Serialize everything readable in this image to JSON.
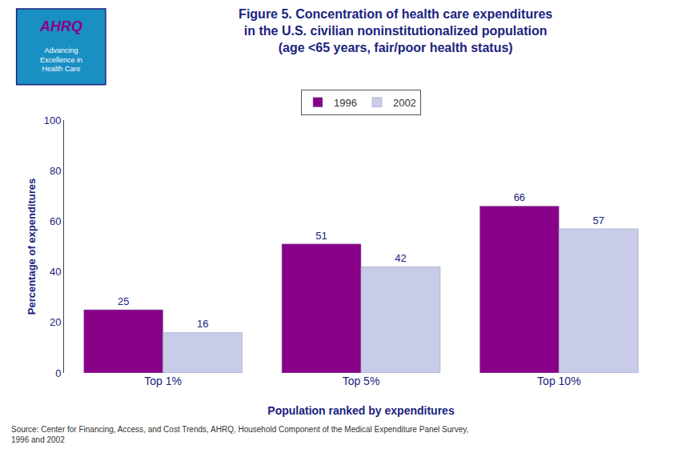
{
  "chart_data": {
    "type": "bar",
    "title": "Figure 5. Concentration of health care expenditures\nin the U.S. civilian noninstitutionalized population\n(age <65 years, fair/poor health status)",
    "categories": [
      "Top 1%",
      "Top 5%",
      "Top 10%"
    ],
    "series": [
      {
        "name": "1996",
        "color": "#880088",
        "values": [
          25,
          51,
          66
        ]
      },
      {
        "name": "2002",
        "color": "#c8cce8",
        "values": [
          16,
          42,
          57
        ]
      }
    ],
    "x_label": "Population ranked by expenditures",
    "y_label": "Percentage of expenditures",
    "ylim": [
      0,
      100
    ],
    "yticks": [
      0,
      20,
      40,
      60,
      80,
      100
    ],
    "grid": false,
    "legend": "top",
    "data_labels": true,
    "annotations": [
      "AHRQ",
      "Advancing\nExcellence in\nHealth Care",
      "Source: Center for Financing, Access, and Cost Trends, AHRQ, Household Component of the Medical Expenditure Panel Survey,\n1996 and 2002"
    ]
  }
}
